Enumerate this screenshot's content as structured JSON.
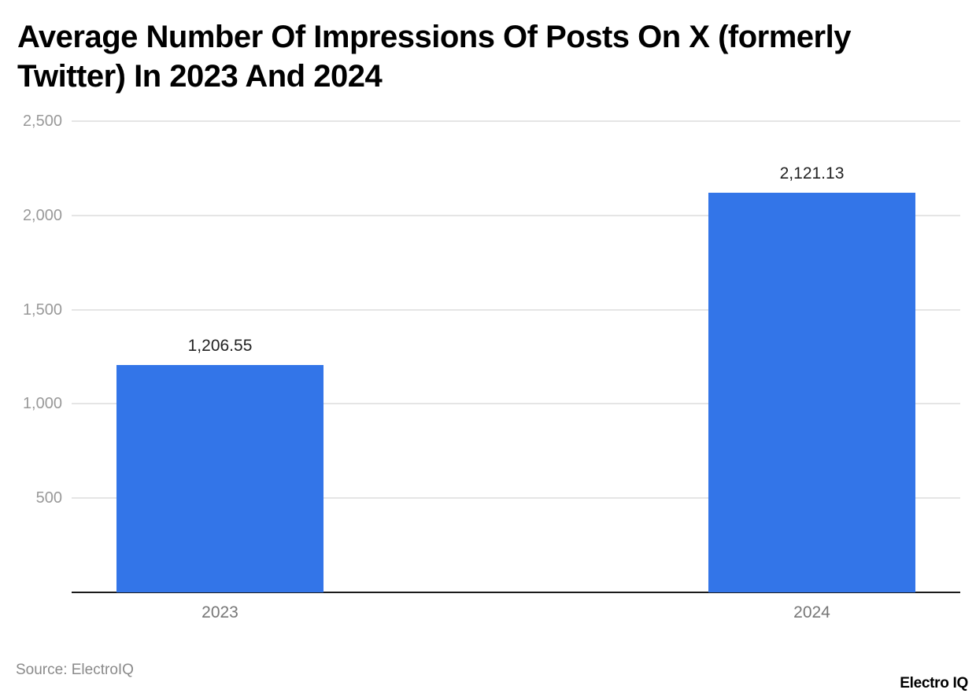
{
  "chart_data": {
    "type": "bar",
    "title": "Average Number Of Impressions Of Posts On X (formerly Twitter) In 2023 And 2024",
    "categories": [
      "2023",
      "2024"
    ],
    "values": [
      1206.55,
      2121.13
    ],
    "value_labels": [
      "1,206.55",
      "2,121.13"
    ],
    "xlabel": "",
    "ylabel": "",
    "ylim": [
      0,
      2500
    ],
    "yticks": [
      500,
      1000,
      1500,
      2000,
      2500
    ],
    "ytick_labels": [
      "500",
      "1,000",
      "1,500",
      "2,000",
      "2,500"
    ],
    "grid": true,
    "legend": null,
    "bar_color": "#3375e8"
  },
  "header": {
    "title": "Average Number Of Impressions Of Posts On X (formerly Twitter) In 2023 And 2024"
  },
  "footer": {
    "source": "Source: ElectroIQ",
    "brand": "Electro IQ"
  }
}
